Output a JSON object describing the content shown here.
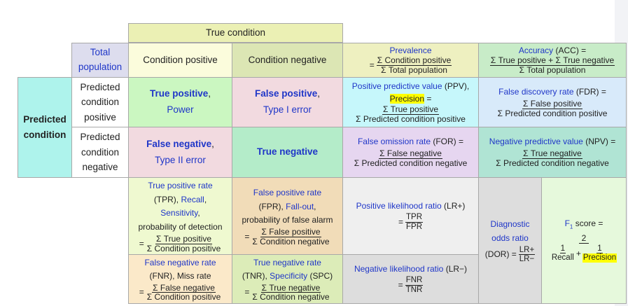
{
  "header": {
    "true_condition": "True condition"
  },
  "total_population": {
    "line1": "Total",
    "line2": "population"
  },
  "condition_positive": "Condition positive",
  "condition_negative": "Condition negative",
  "prevalence": {
    "name": "Prevalence",
    "num": "Σ Condition positive",
    "den": "Σ Total population"
  },
  "accuracy": {
    "name": "Accuracy",
    "abbr": " (ACC) =",
    "num": "Σ True positive + Σ True negative",
    "den": "Σ Total population"
  },
  "predicted_condition": {
    "line1": "Predicted",
    "line2": "condition"
  },
  "predicted_positive": {
    "line1": "Predicted",
    "line2": "condition",
    "line3": "positive"
  },
  "predicted_negative": {
    "line1": "Predicted",
    "line2": "condition",
    "line3": "negative"
  },
  "true_positive": {
    "name": "True positive",
    "comma": ",",
    "alt": "Power"
  },
  "false_positive": {
    "name": "False positive",
    "comma": ",",
    "alt": "Type I error"
  },
  "false_negative": {
    "name": "False negative",
    "comma": ",",
    "alt": "Type II error"
  },
  "true_negative": {
    "name": "True negative"
  },
  "ppv": {
    "name": "Positive predictive value",
    "abbr": " (PPV),",
    "precision": "Precision",
    "eq": " =",
    "num": "Σ True positive",
    "den": "Σ Predicted condition positive"
  },
  "fdr": {
    "name": "False discovery rate",
    "abbr": " (FDR) =",
    "num": "Σ False positive",
    "den": "Σ Predicted condition positive"
  },
  "for": {
    "name": "False omission rate",
    "abbr": " (FOR) =",
    "num": "Σ False negative",
    "den": "Σ Predicted condition negative"
  },
  "npv": {
    "name": "Negative predictive value",
    "abbr": " (NPV) =",
    "num": "Σ True negative",
    "den": "Σ Predicted condition negative"
  },
  "tpr": {
    "name": "True positive rate",
    "abbr": "(TPR), ",
    "recall": "Recall",
    "comma1": ",",
    "sensitivity": "Sensitivity",
    "comma2": ",",
    "pod": "probability of detection",
    "eq": "=",
    "num": "Σ True positive",
    "den": "Σ Condition positive"
  },
  "fpr": {
    "name": "False positive rate",
    "abbr": "(FPR), ",
    "fallout": "Fall-out",
    "comma": ",",
    "pfa": "probability of false alarm",
    "eq": "=",
    "num": "Σ False positive",
    "den": "Σ Condition negative"
  },
  "fnr": {
    "name": "False negative rate",
    "abbr": "(FNR), Miss rate",
    "eq": "=",
    "num": "Σ False negative",
    "den": "Σ Condition positive"
  },
  "tnr": {
    "name": "True negative rate",
    "abbr": "(TNR), ",
    "specificity": "Specificity",
    "spc": " (SPC)",
    "eq": "=",
    "num": "Σ True negative",
    "den": "Σ Condition negative"
  },
  "lr_pos": {
    "name": "Positive likelihood ratio",
    "abbr": " (LR+)",
    "eq": "=",
    "num": "TPR",
    "den": "FPR"
  },
  "lr_neg": {
    "name": "Negative likelihood ratio",
    "abbr": " (LR−)",
    "eq": "=",
    "num": "FNR",
    "den": "TNR"
  },
  "dor": {
    "line1": "Diagnostic",
    "line2": "odds ratio",
    "abbr": "(DOR) =",
    "num": "LR+",
    "den": "LR−"
  },
  "f1": {
    "name": "F",
    "sub": "1",
    "suffix": " score =",
    "num": "2",
    "num1": "1",
    "den1": "Recall",
    "plus": "+",
    "num2": "1",
    "den2": "Precision"
  },
  "colors": {
    "true_condition_bg": "#ebf0b4",
    "predicted_condition_bg": "#aef3ec",
    "pop_bg": "#ddddee",
    "cond_pos_bg": "#fbfcdc",
    "cond_neg_bg": "#dce6b4",
    "true_positive_bg": "#cbf7c1",
    "false_positive_bg": "#f2dae0",
    "false_negative_bg": "#f2dae0",
    "true_negative_bg": "#b4ecc9",
    "prevalence_bg": "#eef0c0",
    "accuracy_bg": "#c8ecc8",
    "ppv_bg": "#c6f7fb",
    "fdr_bg": "#d8eafa",
    "for_bg": "#e6d6f0",
    "npv_bg": "#b0e4d4",
    "tpr_bg": "#eff9d0",
    "fpr_bg": "#f1dcb8",
    "fnr_bg": "#fbe9c9",
    "tnr_bg": "#dcecb8",
    "lr_bg": "#efefef",
    "lrneg_bg": "#dddddd",
    "dor_bg": "#dddddd",
    "f1_bg": "#e6f9dc",
    "link_blue": "#1f36c8",
    "highlight": "#ffff00"
  }
}
